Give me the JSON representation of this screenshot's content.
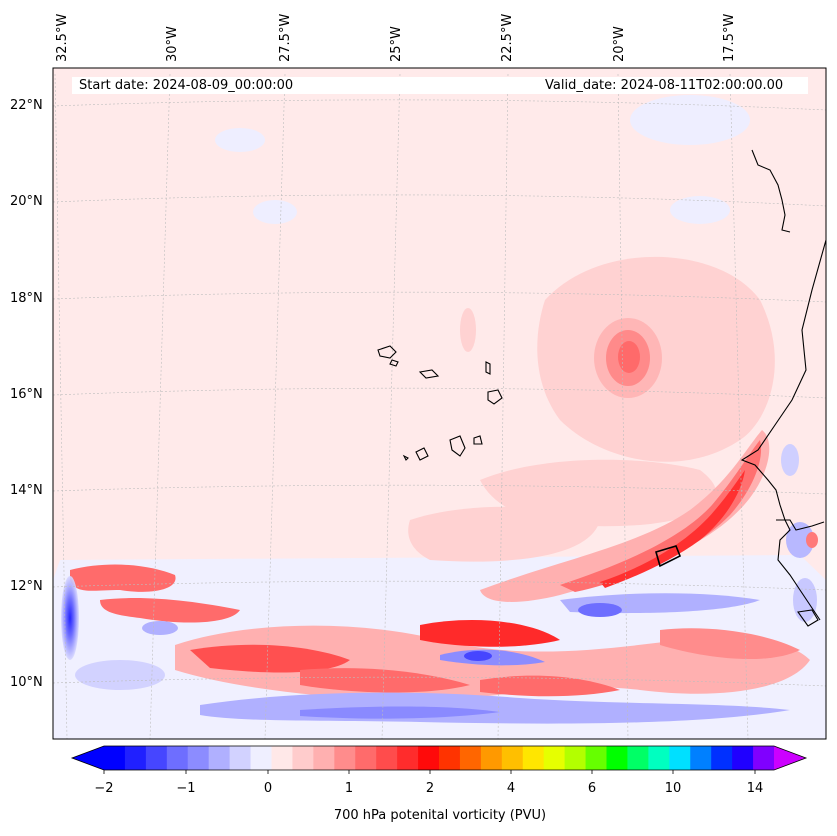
{
  "map": {
    "lon_labels": [
      "32.5°W",
      "30°W",
      "27.5°W",
      "25°W",
      "22.5°W",
      "20°W",
      "17.5°W"
    ],
    "lat_labels": [
      "22°N",
      "20°N",
      "18°N",
      "16°N",
      "14°N",
      "12°N",
      "10°N"
    ],
    "start_date": "Start date: 2024-08-09_00:00:00",
    "valid_date": "Valid_date: 2024-08-11T02:00:00.00"
  },
  "colorbar": {
    "label": "700 hPa potenital vorticity (PVU)",
    "ticks": [
      "−2",
      "−1",
      "0",
      "1",
      "2",
      "4",
      "6",
      "10",
      "14"
    ],
    "colors": [
      "#0000ff",
      "#2020ff",
      "#4646ff",
      "#6e6eff",
      "#8c8cff",
      "#b0b0ff",
      "#d2d2ff",
      "#efefff",
      "#ffe8e8",
      "#ffcccc",
      "#ffb0b0",
      "#ff8c8c",
      "#ff6b6b",
      "#ff4c4c",
      "#ff2c2c",
      "#ff0a0a",
      "#ff3300",
      "#ff6600",
      "#ff9900",
      "#ffbf00",
      "#ffe600",
      "#e6ff00",
      "#b3ff00",
      "#66ff00",
      "#00ff00",
      "#00ff66",
      "#00ffc0",
      "#00e0ff",
      "#0080ff",
      "#0030ff",
      "#2000ff",
      "#8000ff"
    ],
    "under_color": "#0000ff",
    "over_color": "#cc00ff"
  }
}
